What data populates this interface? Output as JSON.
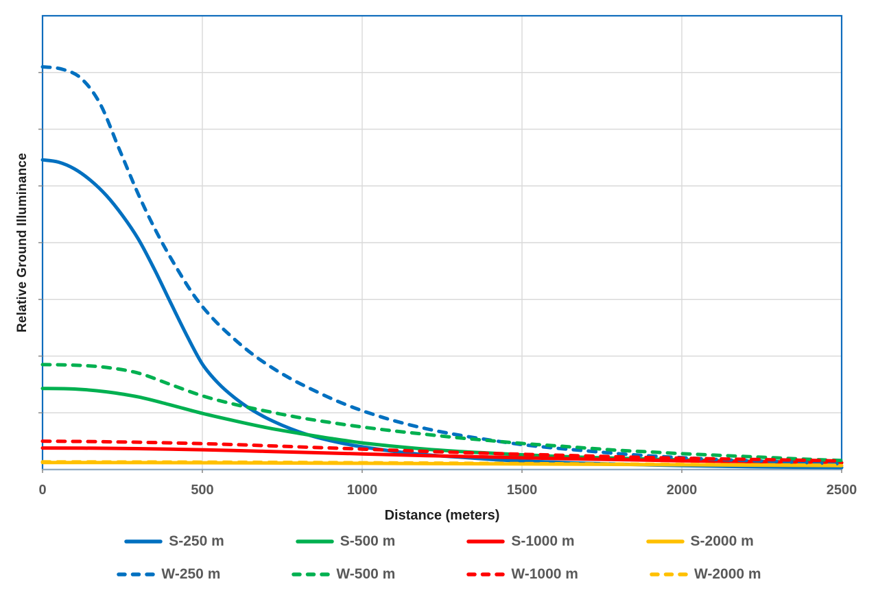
{
  "chart_data": {
    "type": "line",
    "title": "",
    "xlabel": "Distance (meters)",
    "ylabel": "Relative Ground Illuminance",
    "x_ticks": [
      0,
      500,
      1000,
      1500,
      2000,
      2500
    ],
    "x_tick_labels": [
      "0",
      "500",
      "1000",
      "1500",
      "2000",
      "2500"
    ],
    "xlim": [
      0,
      2500
    ],
    "ylim": [
      0,
      8
    ],
    "y_gridline_step": 1,
    "y_tick_labels_shown": false,
    "grid": true,
    "legend_position": "bottom-two-rows",
    "series": [
      {
        "name": "S-250 m",
        "color": "#0070C0",
        "style": "solid",
        "points": [
          [
            0,
            5.46
          ],
          [
            50,
            5.42
          ],
          [
            100,
            5.3
          ],
          [
            150,
            5.1
          ],
          [
            200,
            4.83
          ],
          [
            250,
            4.48
          ],
          [
            300,
            4.06
          ],
          [
            350,
            3.53
          ],
          [
            400,
            2.95
          ],
          [
            450,
            2.38
          ],
          [
            500,
            1.86
          ],
          [
            550,
            1.52
          ],
          [
            600,
            1.27
          ],
          [
            650,
            1.07
          ],
          [
            700,
            0.91
          ],
          [
            750,
            0.78
          ],
          [
            800,
            0.67
          ],
          [
            850,
            0.58
          ],
          [
            900,
            0.51
          ],
          [
            950,
            0.45
          ],
          [
            1000,
            0.4
          ],
          [
            1100,
            0.32
          ],
          [
            1200,
            0.26
          ],
          [
            1300,
            0.22
          ],
          [
            1400,
            0.18
          ],
          [
            1500,
            0.15
          ],
          [
            1600,
            0.13
          ],
          [
            1700,
            0.11
          ],
          [
            1800,
            0.095
          ],
          [
            1900,
            0.082
          ],
          [
            2000,
            0.07
          ],
          [
            2100,
            0.06
          ],
          [
            2200,
            0.052
          ],
          [
            2300,
            0.045
          ],
          [
            2400,
            0.04
          ],
          [
            2500,
            0.035
          ]
        ]
      },
      {
        "name": "S-500 m",
        "color": "#00B050",
        "style": "solid",
        "points": [
          [
            0,
            1.43
          ],
          [
            100,
            1.42
          ],
          [
            200,
            1.37
          ],
          [
            300,
            1.28
          ],
          [
            400,
            1.14
          ],
          [
            500,
            0.99
          ],
          [
            600,
            0.86
          ],
          [
            700,
            0.74
          ],
          [
            800,
            0.64
          ],
          [
            900,
            0.55
          ],
          [
            1000,
            0.47
          ],
          [
            1100,
            0.41
          ],
          [
            1200,
            0.36
          ],
          [
            1300,
            0.32
          ],
          [
            1400,
            0.29
          ],
          [
            1500,
            0.26
          ],
          [
            1600,
            0.235
          ],
          [
            1700,
            0.215
          ],
          [
            1800,
            0.2
          ],
          [
            1900,
            0.185
          ],
          [
            2000,
            0.17
          ],
          [
            2100,
            0.158
          ],
          [
            2200,
            0.148
          ],
          [
            2300,
            0.138
          ],
          [
            2400,
            0.128
          ],
          [
            2500,
            0.12
          ]
        ]
      },
      {
        "name": "S-1000 m",
        "color": "#FF0000",
        "style": "solid",
        "points": [
          [
            0,
            0.38
          ],
          [
            200,
            0.375
          ],
          [
            400,
            0.36
          ],
          [
            600,
            0.335
          ],
          [
            800,
            0.305
          ],
          [
            1000,
            0.275
          ],
          [
            1200,
            0.245
          ],
          [
            1400,
            0.22
          ],
          [
            1600,
            0.195
          ],
          [
            1800,
            0.175
          ],
          [
            2000,
            0.155
          ],
          [
            2200,
            0.14
          ],
          [
            2400,
            0.127
          ],
          [
            2500,
            0.12
          ]
        ]
      },
      {
        "name": "S-2000 m",
        "color": "#FFC000",
        "style": "solid",
        "points": [
          [
            0,
            0.125
          ],
          [
            500,
            0.12
          ],
          [
            1000,
            0.11
          ],
          [
            1500,
            0.098
          ],
          [
            2000,
            0.085
          ],
          [
            2500,
            0.07
          ]
        ]
      },
      {
        "name": "W-250 m",
        "color": "#0070C0",
        "style": "dashed",
        "points": [
          [
            0,
            7.1
          ],
          [
            60,
            7.06
          ],
          [
            120,
            6.9
          ],
          [
            180,
            6.45
          ],
          [
            240,
            5.65
          ],
          [
            300,
            4.85
          ],
          [
            360,
            4.15
          ],
          [
            420,
            3.55
          ],
          [
            480,
            3.02
          ],
          [
            540,
            2.62
          ],
          [
            600,
            2.3
          ],
          [
            660,
            2.02
          ],
          [
            720,
            1.79
          ],
          [
            780,
            1.59
          ],
          [
            840,
            1.42
          ],
          [
            900,
            1.26
          ],
          [
            960,
            1.12
          ],
          [
            1020,
            1.0
          ],
          [
            1100,
            0.86
          ],
          [
            1200,
            0.72
          ],
          [
            1300,
            0.61
          ],
          [
            1400,
            0.52
          ],
          [
            1500,
            0.44
          ],
          [
            1600,
            0.38
          ],
          [
            1700,
            0.33
          ],
          [
            1800,
            0.28
          ],
          [
            1900,
            0.24
          ],
          [
            2000,
            0.21
          ],
          [
            2100,
            0.18
          ],
          [
            2200,
            0.16
          ],
          [
            2300,
            0.14
          ],
          [
            2400,
            0.12
          ],
          [
            2500,
            0.1
          ]
        ]
      },
      {
        "name": "W-500 m",
        "color": "#00B050",
        "style": "dashed",
        "points": [
          [
            0,
            1.85
          ],
          [
            100,
            1.84
          ],
          [
            200,
            1.8
          ],
          [
            300,
            1.7
          ],
          [
            400,
            1.5
          ],
          [
            500,
            1.3
          ],
          [
            600,
            1.15
          ],
          [
            700,
            1.03
          ],
          [
            800,
            0.92
          ],
          [
            900,
            0.83
          ],
          [
            1000,
            0.75
          ],
          [
            1100,
            0.68
          ],
          [
            1200,
            0.62
          ],
          [
            1300,
            0.56
          ],
          [
            1400,
            0.51
          ],
          [
            1500,
            0.46
          ],
          [
            1600,
            0.42
          ],
          [
            1700,
            0.38
          ],
          [
            1800,
            0.34
          ],
          [
            1900,
            0.31
          ],
          [
            2000,
            0.28
          ],
          [
            2100,
            0.255
          ],
          [
            2200,
            0.23
          ],
          [
            2300,
            0.205
          ],
          [
            2400,
            0.18
          ],
          [
            2500,
            0.16
          ]
        ]
      },
      {
        "name": "W-1000 m",
        "color": "#FF0000",
        "style": "dashed",
        "points": [
          [
            0,
            0.5
          ],
          [
            200,
            0.49
          ],
          [
            400,
            0.47
          ],
          [
            600,
            0.44
          ],
          [
            800,
            0.4
          ],
          [
            1000,
            0.36
          ],
          [
            1200,
            0.32
          ],
          [
            1400,
            0.285
          ],
          [
            1600,
            0.255
          ],
          [
            1800,
            0.225
          ],
          [
            2000,
            0.2
          ],
          [
            2200,
            0.18
          ],
          [
            2400,
            0.162
          ],
          [
            2500,
            0.15
          ]
        ]
      },
      {
        "name": "W-2000 m",
        "color": "#FFC000",
        "style": "dashed",
        "points": [
          [
            0,
            0.135
          ],
          [
            500,
            0.13
          ],
          [
            1000,
            0.12
          ],
          [
            1500,
            0.105
          ],
          [
            2000,
            0.09
          ],
          [
            2500,
            0.075
          ]
        ]
      }
    ]
  },
  "colors": {
    "plot_border": "#0F6CBD",
    "gridline": "#D9D9D9",
    "axis_line": "#BFBFBF",
    "tick_mark": "#8C8C8C",
    "tick_label": "#595959",
    "axis_title": "#1F1F1F",
    "legend_text": "#595959",
    "background": "#FFFFFF"
  }
}
